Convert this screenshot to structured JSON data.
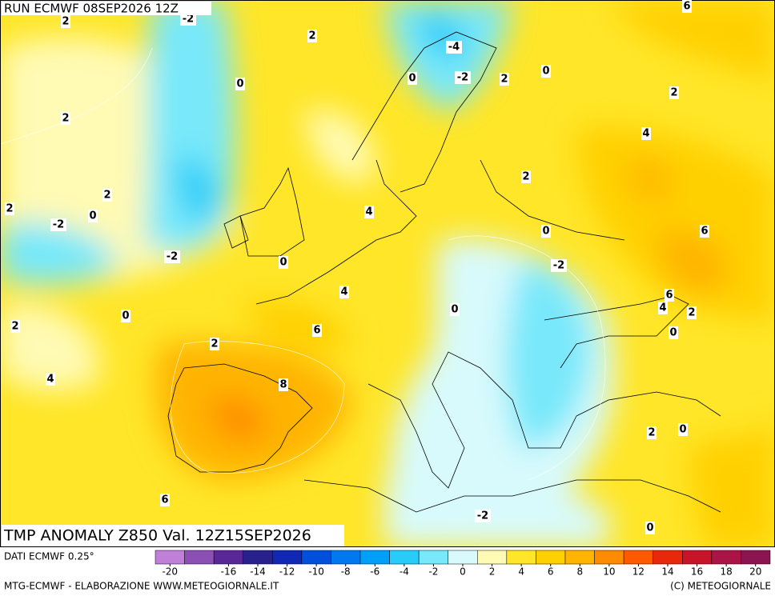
{
  "header": {
    "run": "RUN ECMWF 08SEP2026 12Z"
  },
  "footer": {
    "title": "TMP ANOMALY Z850 Val. 12Z15SEP2026",
    "source": "DATI ECMWF 0.25°",
    "credit": "MTG-ECMWF - ELABORAZIONE WWW.METEOGIORNALE.IT",
    "copyright": "(C) METEOGIORNALE"
  },
  "colorbar": {
    "range": [
      -21,
      21
    ],
    "ticks": [
      -20,
      -16,
      -14,
      -12,
      -10,
      -8,
      -6,
      -4,
      -2,
      0,
      2,
      4,
      6,
      8,
      10,
      12,
      14,
      16,
      18,
      20
    ],
    "colors": [
      "#c080d8",
      "#8c50b4",
      "#5a2896",
      "#28208c",
      "#1028b4",
      "#0050dc",
      "#0078f0",
      "#00a0f8",
      "#28ccf8",
      "#78e8fa",
      "#d8fafc",
      "#fffab4",
      "#ffe628",
      "#ffd000",
      "#ffb400",
      "#ff8c00",
      "#ff5a00",
      "#e8280a",
      "#c81428",
      "#aa1446",
      "#8c1450"
    ]
  },
  "contour_labels": [
    "2",
    "-2",
    "2",
    "6",
    "-4",
    "0",
    "0",
    "-2",
    "2",
    "0",
    "2",
    "2",
    "4",
    "2",
    "2",
    "0",
    "2",
    "-2",
    "4",
    "0",
    "6",
    "-2",
    "0",
    "-2",
    "4",
    "6",
    "0",
    "4",
    "2",
    "0",
    "2",
    "6",
    "0",
    "2",
    "4",
    "8",
    "2",
    "0",
    "6",
    "-2",
    "0"
  ]
}
